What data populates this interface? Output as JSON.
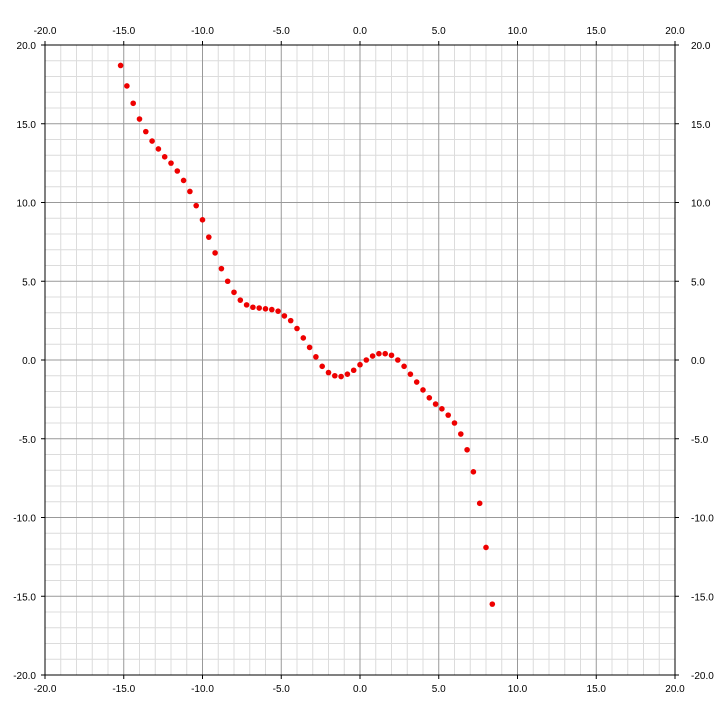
{
  "chart_data": {
    "type": "scatter",
    "title": "",
    "xlabel": "",
    "ylabel": "",
    "xlim": [
      -20,
      20
    ],
    "ylim": [
      -20,
      20
    ],
    "grid": true,
    "grid_major": 5,
    "grid_minor": 1,
    "tick_labels": [
      "-20.0",
      "-15.0",
      "-10.0",
      "-5.0",
      "0.0",
      "5.0",
      "10.0",
      "15.0",
      "20.0"
    ],
    "colors": {
      "point": "#ee0000",
      "major_grid": "#999999",
      "minor_grid": "#dcdcdc",
      "axis": "#000000"
    },
    "series": [
      {
        "x": [
          -15.2,
          -14.8,
          -14.4,
          -14.0,
          -13.6,
          -13.2,
          -12.8,
          -12.4,
          -12.0,
          -11.6,
          -11.2,
          -10.8,
          -10.4,
          -10.0,
          -9.6,
          -9.2,
          -8.8,
          -8.4,
          -8.0,
          -7.6,
          -7.2,
          -6.8,
          -6.4,
          -6.0,
          -5.6,
          -5.2,
          -4.8,
          -4.4,
          -4.0,
          -3.6,
          -3.2,
          -2.8,
          -2.4,
          -2.0,
          -1.6,
          -1.2,
          -0.8,
          -0.4,
          0.0,
          0.4,
          0.8,
          1.2,
          1.6,
          2.0,
          2.4,
          2.8,
          3.2,
          3.6,
          4.0,
          4.4,
          4.8,
          5.2,
          5.6,
          6.0,
          6.4,
          6.8,
          7.2,
          7.6,
          8.0,
          8.4
        ],
        "y": [
          18.7,
          17.4,
          16.3,
          15.3,
          14.5,
          13.9,
          13.4,
          12.9,
          12.5,
          12.0,
          11.4,
          10.7,
          9.8,
          8.9,
          7.8,
          6.8,
          5.8,
          5.0,
          4.3,
          3.8,
          3.5,
          3.35,
          3.3,
          3.25,
          3.2,
          3.1,
          2.8,
          2.5,
          2.0,
          1.4,
          0.8,
          0.2,
          -0.4,
          -0.8,
          -1.0,
          -1.05,
          -0.9,
          -0.65,
          -0.3,
          0.0,
          0.25,
          0.4,
          0.4,
          0.3,
          0.0,
          -0.4,
          -0.9,
          -1.4,
          -1.9,
          -2.4,
          -2.8,
          -3.1,
          -3.5,
          -4.0,
          -4.7,
          -5.7,
          -7.1,
          -9.1,
          -11.9,
          -15.5
        ]
      }
    ]
  }
}
